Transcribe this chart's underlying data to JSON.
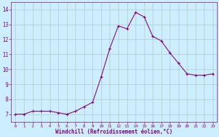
{
  "hours": [
    0,
    1,
    2,
    3,
    4,
    5,
    6,
    7,
    8,
    9,
    10,
    11,
    12,
    13,
    14,
    15,
    16,
    17,
    18,
    19,
    20,
    21,
    22,
    23
  ],
  "values": [
    7.0,
    7.0,
    7.2,
    7.2,
    7.2,
    7.1,
    7.0,
    7.2,
    7.5,
    7.8,
    9.5,
    11.4,
    12.9,
    12.7,
    13.8,
    13.5,
    12.2,
    11.9,
    11.1,
    10.4,
    9.7,
    9.6,
    9.6,
    9.7
  ],
  "ylim": [
    6.5,
    14.5
  ],
  "yticks": [
    7,
    8,
    9,
    10,
    11,
    12,
    13,
    14
  ],
  "line_color": "#800080",
  "marker": "+",
  "bg_color": "#cceeff",
  "grid_color": "#b0c8c8",
  "xlabel": "Windchill (Refroidissement éolien,°C)",
  "xlabel_color": "#800080",
  "tick_color": "#800080",
  "spine_color": "#800080",
  "xtick_fontsize": 4.5,
  "ytick_fontsize": 5.5,
  "xlabel_fontsize": 5.5
}
